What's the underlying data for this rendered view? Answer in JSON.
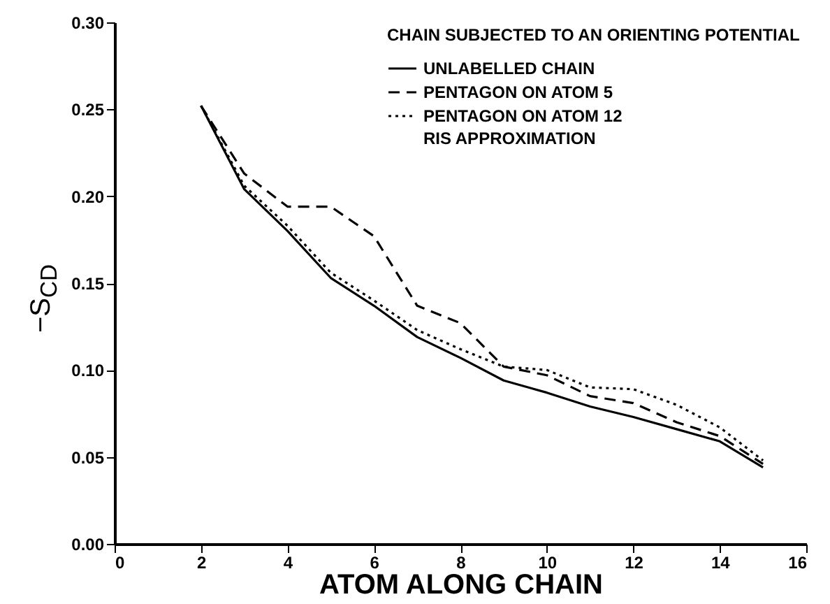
{
  "chart_data": {
    "type": "line",
    "xlabel": "ATOM ALONG CHAIN",
    "ylabel": "−S$_{CD}$",
    "legend_title": "CHAIN SUBJECTED TO AN ORIENTING POTENTIAL",
    "annotations": [
      "RIS APPROXIMATION"
    ],
    "x": [
      2,
      3,
      4,
      5,
      6,
      7,
      8,
      9,
      10,
      11,
      12,
      13,
      14,
      15
    ],
    "series": [
      {
        "name": "UNLABELLED CHAIN",
        "color": "#000000",
        "line_style": "solid",
        "values": [
          0.252,
          0.204,
          0.18,
          0.153,
          0.137,
          0.119,
          0.107,
          0.094,
          0.087,
          0.079,
          0.073,
          0.066,
          0.059,
          0.044
        ]
      },
      {
        "name": "PENTAGON ON ATOM 5",
        "color": "#000000",
        "line_style": "dashed",
        "values": [
          0.252,
          0.213,
          0.194,
          0.194,
          0.177,
          0.137,
          0.127,
          0.102,
          0.097,
          0.085,
          0.081,
          0.07,
          0.062,
          0.046
        ]
      },
      {
        "name": "PENTAGON ON ATOM 12",
        "color": "#000000",
        "line_style": "dotted",
        "values": [
          0.252,
          0.206,
          0.183,
          0.156,
          0.14,
          0.123,
          0.112,
          0.102,
          0.1,
          0.09,
          0.089,
          0.08,
          0.067,
          0.048
        ]
      }
    ],
    "xlim": [
      0,
      16
    ],
    "xticks": [
      0,
      2,
      4,
      6,
      8,
      10,
      12,
      14,
      16
    ],
    "ylim": [
      0,
      0.3
    ],
    "yticks": [
      {
        "value": 0,
        "label": "0.00"
      },
      {
        "value": 0.05,
        "label": "0.05"
      },
      {
        "value": 0.1,
        "label": "0.10"
      },
      {
        "value": 0.15,
        "label": "0.15"
      },
      {
        "value": 0.2,
        "label": "0.20"
      },
      {
        "value": 0.25,
        "label": "0.25"
      },
      {
        "value": 0.3,
        "label": "0.30"
      }
    ],
    "grid": false,
    "legend": "top right"
  }
}
